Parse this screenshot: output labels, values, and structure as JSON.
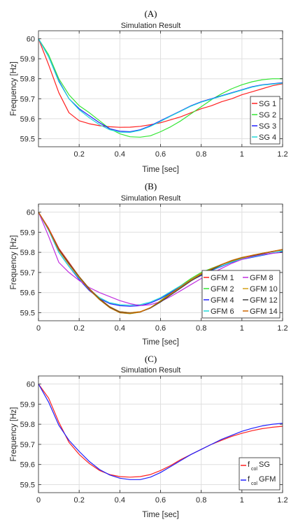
{
  "chart_data": [
    {
      "panel": "(A)",
      "type": "line",
      "title": "Simulation Result",
      "xlabel": "Time [sec]",
      "ylabel": "Frequency [Hz]",
      "xlim": [
        0,
        1.2
      ],
      "ylim": [
        59.46,
        60.04
      ],
      "xticks": [
        0.2,
        0.4,
        0.6,
        0.8,
        1,
        1.2
      ],
      "xtick_labels": [
        "0.2",
        "0.4",
        "0.6",
        "0.8",
        "1",
        "1.2"
      ],
      "yticks": [
        60,
        59.9,
        59.8,
        59.7,
        59.6,
        59.5
      ],
      "ytick_labels": [
        "60",
        "59.9",
        "59.8",
        "59.7",
        "59.6",
        "59.5"
      ],
      "grid": true,
      "legend_position": "bottom-right",
      "legend_columns": 1,
      "x": [
        0,
        0.05,
        0.1,
        0.15,
        0.2,
        0.25,
        0.3,
        0.35,
        0.4,
        0.45,
        0.5,
        0.55,
        0.6,
        0.65,
        0.7,
        0.75,
        0.8,
        0.85,
        0.9,
        0.95,
        1.0,
        1.05,
        1.1,
        1.15,
        1.2
      ],
      "series": [
        {
          "name": "SG 1",
          "color": "#ff2020",
          "values": [
            60.0,
            59.87,
            59.73,
            59.63,
            59.59,
            59.575,
            59.565,
            59.56,
            59.557,
            59.558,
            59.562,
            59.57,
            59.58,
            59.595,
            59.61,
            59.63,
            59.65,
            59.665,
            59.685,
            59.7,
            59.72,
            59.735,
            59.75,
            59.765,
            59.775
          ]
        },
        {
          "name": "SG 2",
          "color": "#33e633",
          "values": [
            60.0,
            59.92,
            59.8,
            59.72,
            59.665,
            59.63,
            59.59,
            59.55,
            59.525,
            59.51,
            59.508,
            59.515,
            59.535,
            59.56,
            59.59,
            59.625,
            59.66,
            59.695,
            59.725,
            59.75,
            59.77,
            59.785,
            59.795,
            59.8,
            59.8
          ]
        },
        {
          "name": "SG 3",
          "color": "#2020ff",
          "values": [
            60.0,
            59.91,
            59.79,
            59.7,
            59.65,
            59.615,
            59.58,
            59.55,
            59.538,
            59.535,
            59.545,
            59.565,
            59.59,
            59.615,
            59.64,
            59.665,
            59.685,
            59.7,
            59.715,
            59.73,
            59.745,
            59.76,
            59.77,
            59.775,
            59.78
          ]
        },
        {
          "name": "SG 4",
          "color": "#20d9d9",
          "values": [
            60.0,
            59.91,
            59.785,
            59.7,
            59.645,
            59.605,
            59.57,
            59.545,
            59.533,
            59.532,
            59.542,
            59.562,
            59.587,
            59.613,
            59.638,
            59.663,
            59.683,
            59.698,
            59.713,
            59.728,
            59.743,
            59.758,
            59.768,
            59.773,
            59.778
          ]
        }
      ]
    },
    {
      "panel": "(B)",
      "type": "line",
      "title": "Simulation Result",
      "xlabel": "Time [sec]",
      "ylabel": "Frequency [Hz]",
      "xlim": [
        0,
        1.2
      ],
      "ylim": [
        59.46,
        60.04
      ],
      "xticks": [
        0,
        0.2,
        0.4,
        0.6,
        0.8,
        1,
        1.2
      ],
      "xtick_labels": [
        "0",
        "0.2",
        "0.4",
        "0.6",
        "0.8",
        "1",
        "1.2"
      ],
      "yticks": [
        60,
        59.9,
        59.8,
        59.7,
        59.6,
        59.5
      ],
      "ytick_labels": [
        "60",
        "59.9",
        "59.8",
        "59.7",
        "59.6",
        "59.5"
      ],
      "grid": true,
      "legend_position": "bottom-right",
      "legend_columns": 2,
      "x": [
        0,
        0.05,
        0.1,
        0.15,
        0.2,
        0.25,
        0.3,
        0.35,
        0.4,
        0.45,
        0.5,
        0.55,
        0.6,
        0.65,
        0.7,
        0.75,
        0.8,
        0.85,
        0.9,
        0.95,
        1.0,
        1.05,
        1.1,
        1.15,
        1.2
      ],
      "series": [
        {
          "name": "GFM 1",
          "color": "#ff2020",
          "values": [
            60.0,
            59.92,
            59.82,
            59.75,
            59.68,
            59.62,
            59.57,
            59.53,
            59.505,
            59.5,
            59.505,
            59.525,
            59.555,
            59.59,
            59.625,
            59.66,
            59.69,
            59.715,
            59.74,
            59.76,
            59.775,
            59.785,
            59.795,
            59.805,
            59.815
          ]
        },
        {
          "name": "GFM 2",
          "color": "#33e633",
          "values": [
            60.0,
            59.915,
            59.81,
            59.74,
            59.675,
            59.615,
            59.565,
            59.525,
            59.5,
            59.495,
            59.503,
            59.525,
            59.56,
            59.6,
            59.635,
            59.67,
            59.7,
            59.72,
            59.74,
            59.755,
            59.77,
            59.785,
            59.795,
            59.805,
            59.812
          ]
        },
        {
          "name": "GFM 4",
          "color": "#2020ff",
          "values": [
            60.0,
            59.91,
            59.8,
            59.73,
            59.665,
            59.61,
            59.57,
            59.545,
            59.535,
            59.532,
            59.535,
            59.548,
            59.57,
            59.6,
            59.63,
            59.66,
            59.685,
            59.71,
            59.73,
            59.75,
            59.765,
            59.775,
            59.785,
            59.795,
            59.805
          ]
        },
        {
          "name": "GFM 6",
          "color": "#20d9d9",
          "values": [
            60.0,
            59.91,
            59.8,
            59.73,
            59.67,
            59.615,
            59.575,
            59.55,
            59.54,
            59.537,
            59.54,
            59.553,
            59.575,
            59.605,
            59.635,
            59.662,
            59.688,
            59.712,
            59.732,
            59.752,
            59.767,
            59.777,
            59.787,
            59.797,
            59.807
          ]
        },
        {
          "name": "GFM 8",
          "color": "#c030e0",
          "values": [
            60.0,
            59.88,
            59.75,
            59.7,
            59.66,
            59.625,
            59.6,
            59.58,
            59.56,
            59.545,
            59.535,
            59.54,
            59.555,
            59.58,
            59.61,
            59.64,
            59.67,
            59.695,
            59.72,
            59.745,
            59.765,
            59.78,
            59.79,
            59.795,
            59.8
          ]
        },
        {
          "name": "GFM 10",
          "color": "#d4a017",
          "values": [
            60.0,
            59.915,
            59.815,
            59.745,
            59.68,
            59.62,
            59.57,
            59.53,
            59.505,
            59.5,
            59.505,
            59.525,
            59.555,
            59.59,
            59.625,
            59.66,
            59.69,
            59.715,
            59.74,
            59.76,
            59.775,
            59.785,
            59.795,
            59.805,
            59.815
          ]
        },
        {
          "name": "GFM 12",
          "color": "#404040",
          "values": [
            60.0,
            59.915,
            59.815,
            59.745,
            59.678,
            59.618,
            59.568,
            59.528,
            59.503,
            59.498,
            59.503,
            59.523,
            59.553,
            59.588,
            59.623,
            59.658,
            59.688,
            59.713,
            59.738,
            59.758,
            59.773,
            59.783,
            59.793,
            59.803,
            59.813
          ]
        },
        {
          "name": "GFM 14",
          "color": "#cc6600",
          "values": [
            60.0,
            59.915,
            59.81,
            59.74,
            59.675,
            59.615,
            59.565,
            59.525,
            59.5,
            59.496,
            59.503,
            59.525,
            59.558,
            59.595,
            59.63,
            59.665,
            59.695,
            59.718,
            59.74,
            59.757,
            59.772,
            59.785,
            59.795,
            59.805,
            59.812
          ]
        }
      ]
    },
    {
      "panel": "(C)",
      "type": "line",
      "title": "Simulation Result",
      "xlabel": "Time [sec]",
      "ylabel": "Frequency [Hz]",
      "xlim": [
        0,
        1.2
      ],
      "ylim": [
        59.46,
        60.04
      ],
      "xticks": [
        0,
        0.2,
        0.4,
        0.6,
        0.8,
        1,
        1.2
      ],
      "xtick_labels": [
        "0",
        "0.2",
        "0.4",
        "0.6",
        "0.8",
        "1",
        "1.2"
      ],
      "yticks": [
        60,
        59.9,
        59.8,
        59.7,
        59.6,
        59.5
      ],
      "ytick_labels": [
        "60",
        "59.9",
        "59.8",
        "59.7",
        "59.6",
        "59.5"
      ],
      "grid": true,
      "legend_position": "bottom-right",
      "legend_columns": 1,
      "x": [
        0,
        0.05,
        0.1,
        0.15,
        0.2,
        0.25,
        0.3,
        0.35,
        0.4,
        0.45,
        0.5,
        0.55,
        0.6,
        0.65,
        0.7,
        0.75,
        0.8,
        0.85,
        0.9,
        0.95,
        1.0,
        1.05,
        1.1,
        1.15,
        1.2
      ],
      "series": [
        {
          "name_main": "f",
          "name_sub": "col",
          "name_rest": "SG",
          "color": "#ff2020",
          "values": [
            60.0,
            59.93,
            59.81,
            59.71,
            59.65,
            59.605,
            59.57,
            59.55,
            59.54,
            59.537,
            59.54,
            59.55,
            59.57,
            59.595,
            59.625,
            59.65,
            59.675,
            59.7,
            59.72,
            59.74,
            59.755,
            59.768,
            59.778,
            59.785,
            59.79
          ]
        },
        {
          "name_main": "f",
          "name_sub": "col",
          "name_rest": "GFM",
          "color": "#2020ff",
          "values": [
            60.0,
            59.91,
            59.795,
            59.72,
            59.665,
            59.615,
            59.575,
            59.548,
            59.532,
            59.525,
            59.525,
            59.537,
            59.56,
            59.59,
            59.62,
            59.65,
            59.675,
            59.7,
            59.725,
            59.745,
            59.765,
            59.78,
            59.792,
            59.8,
            59.805
          ]
        }
      ]
    }
  ]
}
